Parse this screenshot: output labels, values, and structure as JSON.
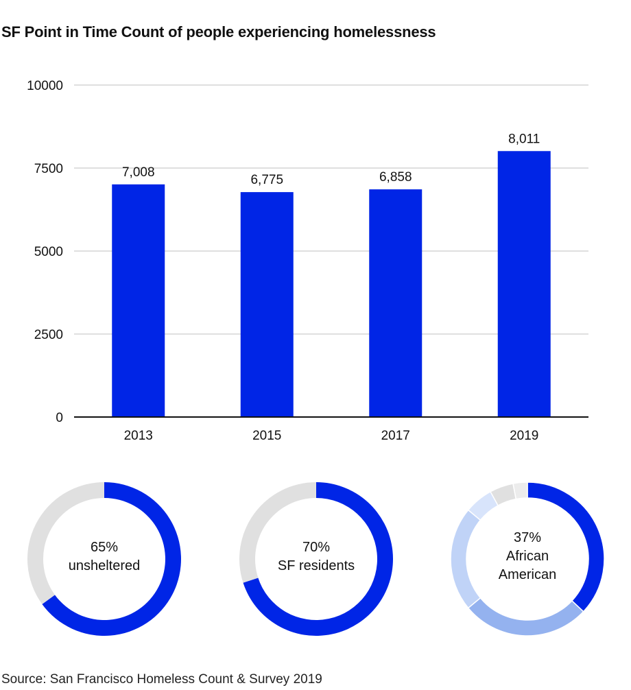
{
  "title": "SF Point in Time Count of people experiencing homelessness",
  "source": "Source: San Francisco Homeless Count & Survey 2019",
  "colors": {
    "bar": "#0025e6",
    "grid": "#cccccc",
    "axis": "#111111",
    "rest": "#e0e0e0"
  },
  "chart_data": [
    {
      "type": "bar",
      "title": "SF Point in Time Count of people experiencing homelessness",
      "categories": [
        "2013",
        "2015",
        "2017",
        "2019"
      ],
      "values": [
        7008,
        6775,
        6858,
        8011
      ],
      "value_labels": [
        "7,008",
        "6,775",
        "6,858",
        "8,011"
      ],
      "ylim": [
        0,
        10000
      ],
      "yticks": [
        "0",
        "2500",
        "5000",
        "7500",
        "10000"
      ],
      "grid": true,
      "xlabel": "",
      "ylabel": ""
    },
    {
      "type": "pie",
      "style": "donut",
      "label_value": "65%",
      "label_text": "unsheltered",
      "slices": [
        {
          "value": 65,
          "color": "#0025e6"
        },
        {
          "value": 35,
          "color": "#e0e0e0"
        }
      ]
    },
    {
      "type": "pie",
      "style": "donut",
      "label_value": "70%",
      "label_text": "SF residents",
      "slices": [
        {
          "value": 70,
          "color": "#0025e6"
        },
        {
          "value": 30,
          "color": "#e0e0e0"
        }
      ]
    },
    {
      "type": "pie",
      "style": "donut",
      "label_value": "37%",
      "label_text": "African American",
      "slices": [
        {
          "value": 37,
          "color": "#0025e6"
        },
        {
          "value": 27,
          "color": "#94b2ef"
        },
        {
          "value": 22,
          "color": "#c0d3f7"
        },
        {
          "value": 6,
          "color": "#d8e4fb"
        },
        {
          "value": 5,
          "color": "#e0e0e0"
        },
        {
          "value": 3,
          "color": "#ececec"
        }
      ]
    }
  ]
}
